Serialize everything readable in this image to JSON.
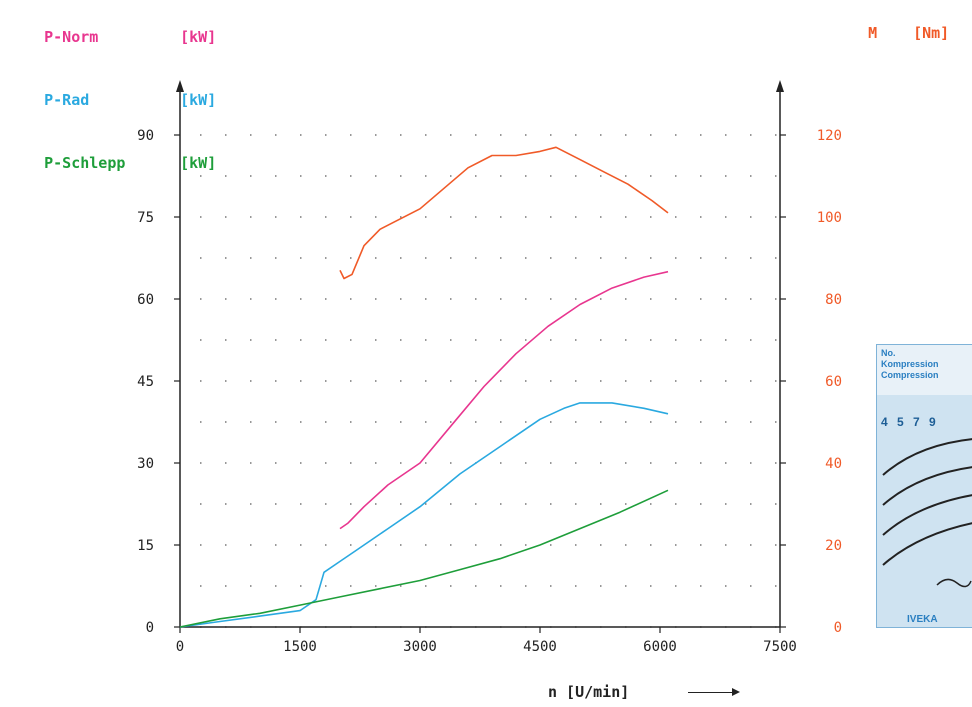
{
  "legend": {
    "p_norm": {
      "name": "P-Norm",
      "unit": "[kW]",
      "color": "#e8368f"
    },
    "p_rad": {
      "name": "P-Rad",
      "unit": "[kW]",
      "color": "#2aa9e0"
    },
    "p_schlepp": {
      "name": "P-Schlepp",
      "unit": "[kW]",
      "color": "#1e9e3a"
    }
  },
  "torque_axis": {
    "name": "M",
    "unit": "[Nm]",
    "color": "#f05a28"
  },
  "x_axis_title": "n [U/min]",
  "stamp": {
    "line1": "No.",
    "line2": "Kompression",
    "line3": "Compression",
    "numbers": "4 5 7 9",
    "brand": "IVEKA"
  },
  "chart_data": {
    "type": "line",
    "x_label": "n [U/min]",
    "x_ticks": [
      "0",
      "1500",
      "3000",
      "4500",
      "6000",
      "7500"
    ],
    "x_range": [
      0,
      7500
    ],
    "y_left_ticks": [
      "0",
      "15",
      "30",
      "45",
      "60",
      "75",
      "90"
    ],
    "y_left_range": [
      0,
      90
    ],
    "y_right_ticks": [
      "0",
      "20",
      "40",
      "60",
      "80",
      "100",
      "120"
    ],
    "y_right_range": [
      0,
      120
    ],
    "grid": "dotted",
    "series": [
      {
        "name": "P-Norm",
        "axis": "left",
        "color": "#e8368f",
        "x": [
          2000,
          2100,
          2300,
          2600,
          3000,
          3400,
          3800,
          4200,
          4600,
          5000,
          5400,
          5800,
          6100
        ],
        "y": [
          18,
          19,
          22,
          26,
          30,
          37,
          44,
          50,
          55,
          59,
          62,
          64,
          65
        ]
      },
      {
        "name": "P-Rad",
        "axis": "left",
        "color": "#2aa9e0",
        "x": [
          0,
          500,
          1000,
          1500,
          1700,
          1800,
          2000,
          2200,
          2600,
          3000,
          3500,
          4000,
          4500,
          4800,
          5000,
          5400,
          5800,
          6100
        ],
        "y": [
          0,
          1,
          2,
          3,
          5,
          10,
          12,
          14,
          18,
          22,
          28,
          33,
          38,
          40,
          41,
          41,
          40,
          39
        ]
      },
      {
        "name": "P-Schlepp",
        "axis": "left",
        "color": "#1e9e3a",
        "x": [
          0,
          500,
          1000,
          1500,
          2000,
          2500,
          3000,
          3500,
          4000,
          4500,
          5000,
          5500,
          6100
        ],
        "y": [
          0,
          1.5,
          2.5,
          4,
          5.5,
          7,
          8.5,
          10.5,
          12.5,
          15,
          18,
          21,
          25
        ]
      },
      {
        "name": "M",
        "axis": "right",
        "color": "#f05a28",
        "x": [
          2000,
          2050,
          2150,
          2300,
          2500,
          2700,
          3000,
          3300,
          3600,
          3900,
          4200,
          4500,
          4700,
          5000,
          5300,
          5600,
          5900,
          6100
        ],
        "y": [
          87,
          85,
          86,
          93,
          97,
          99,
          102,
          107,
          112,
          115,
          115,
          116,
          117,
          114,
          111,
          108,
          104,
          101
        ]
      }
    ]
  }
}
